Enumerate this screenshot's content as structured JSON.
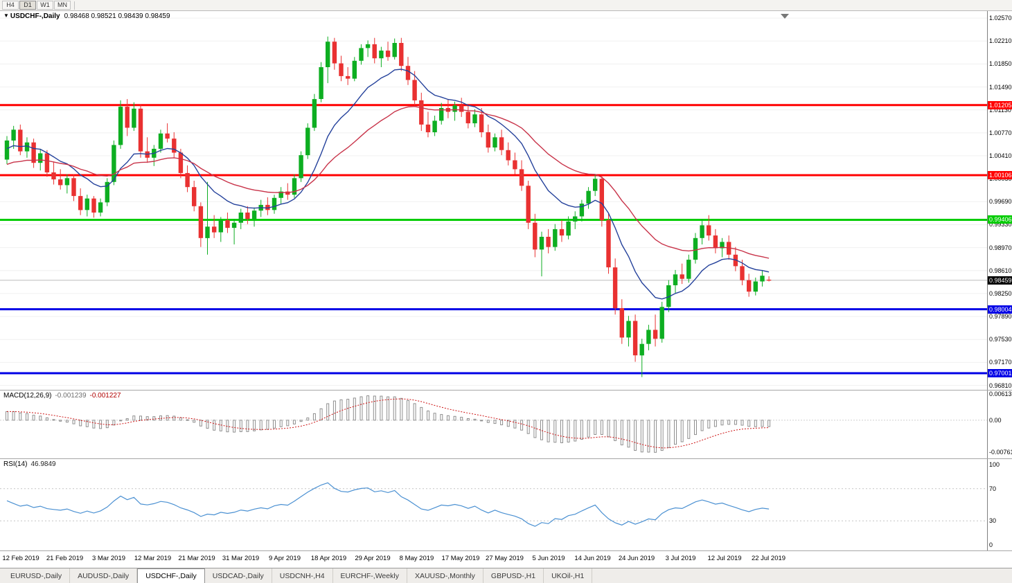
{
  "toolbar": {
    "timeframes": [
      "H4",
      "D1",
      "W1",
      "MN"
    ],
    "active": "D1"
  },
  "chart": {
    "marker_icon": "▼",
    "symbol_label": "USDCHF-,Daily",
    "ohlc_text": "0.98468 0.98521 0.98439 0.98459"
  },
  "chart_data": {
    "type": "candlestick",
    "title": "USDCHF-,Daily",
    "y_range": [
      0.9674,
      1.0268
    ],
    "y_ticks": [
      "1.02570",
      "1.02210",
      "1.01850",
      "1.01490",
      "1.01130",
      "1.00770",
      "1.00410",
      "1.00050",
      "0.99690",
      "0.99330",
      "0.98970",
      "0.98610",
      "0.98250",
      "0.97890",
      "0.97530",
      "0.97170",
      "0.96810"
    ],
    "x_labels": [
      "12 Feb 2019",
      "21 Feb 2019",
      "3 Mar 2019",
      "12 Mar 2019",
      "21 Mar 2019",
      "31 Mar 2019",
      "9 Apr 2019",
      "18 Apr 2019",
      "29 Apr 2019",
      "8 May 2019",
      "17 May 2019",
      "27 May 2019",
      "5 Jun 2019",
      "14 Jun 2019",
      "24 Jun 2019",
      "3 Jul 2019",
      "12 Jul 2019",
      "22 Jul 2019"
    ],
    "levels": [
      {
        "price": 1.01205,
        "label": "1.01205",
        "color": "#FF0000",
        "role": "resistance"
      },
      {
        "price": 1.00106,
        "label": "1.00106",
        "color": "#FF0000",
        "role": "resistance"
      },
      {
        "price": 0.99406,
        "label": "0.99406",
        "color": "#00CC00",
        "role": "resistance"
      },
      {
        "price": 0.98004,
        "label": "0.98004",
        "color": "#0000E6",
        "role": "support"
      },
      {
        "price": 0.97001,
        "label": "0.97001",
        "color": "#0000E6",
        "role": "support"
      }
    ],
    "current_price": {
      "value": 0.98459,
      "label": "0.98459"
    },
    "candles": [
      [
        1.0035,
        1.0072,
        1.0028,
        1.0065
      ],
      [
        1.0065,
        1.0088,
        1.0052,
        1.0082
      ],
      [
        1.0082,
        1.009,
        1.0042,
        1.0048
      ],
      [
        1.0048,
        1.007,
        1.0038,
        1.0062
      ],
      [
        1.0062,
        1.0068,
        1.0022,
        1.003
      ],
      [
        1.003,
        1.0052,
        1.0018,
        1.0045
      ],
      [
        1.0045,
        1.005,
        1.0008,
        1.0015
      ],
      [
        1.0015,
        1.0032,
        0.9996,
        1.0004
      ],
      [
        1.0004,
        1.002,
        0.9988,
        0.9995
      ],
      [
        0.9995,
        1.0012,
        0.9982,
        1.0006
      ],
      [
        1.0006,
        1.0012,
        0.997,
        0.9978
      ],
      [
        0.9978,
        0.999,
        0.9948,
        0.9956
      ],
      [
        0.9956,
        0.998,
        0.9946,
        0.9974
      ],
      [
        0.9974,
        0.9978,
        0.9944,
        0.9952
      ],
      [
        0.9952,
        0.9974,
        0.9946,
        0.9968
      ],
      [
        0.9968,
        1.0006,
        0.9962,
        1.0
      ],
      [
        1.0,
        1.0065,
        0.9995,
        1.0058
      ],
      [
        1.0058,
        1.0128,
        1.0052,
        1.0118
      ],
      [
        1.0118,
        1.013,
        1.0072,
        1.0085
      ],
      [
        1.0085,
        1.0125,
        1.008,
        1.0115
      ],
      [
        1.0115,
        1.0122,
        1.0038,
        1.0048
      ],
      [
        1.0048,
        1.007,
        1.003,
        1.0038
      ],
      [
        1.0038,
        1.0058,
        1.0025,
        1.0052
      ],
      [
        1.0052,
        1.0082,
        1.0046,
        1.0076
      ],
      [
        1.0076,
        1.0092,
        1.0062,
        1.0068
      ],
      [
        1.0068,
        1.0078,
        1.0038,
        1.0046
      ],
      [
        1.0046,
        1.0052,
        1.0006,
        1.0014
      ],
      [
        1.0014,
        1.0026,
        0.9984,
        0.9992
      ],
      [
        0.9992,
        1.0002,
        0.9954,
        0.9962
      ],
      [
        0.9962,
        0.9968,
        0.9898,
        0.9912
      ],
      [
        0.9912,
        1.0,
        0.9886,
        0.993
      ],
      [
        0.993,
        0.9948,
        0.9912,
        0.9921
      ],
      [
        0.9921,
        0.9945,
        0.9906,
        0.994
      ],
      [
        0.994,
        0.9952,
        0.992,
        0.9928
      ],
      [
        0.9928,
        0.9942,
        0.9902,
        0.9936
      ],
      [
        0.9936,
        0.9958,
        0.9926,
        0.9952
      ],
      [
        0.9952,
        0.9962,
        0.9934,
        0.9942
      ],
      [
        0.9942,
        0.996,
        0.993,
        0.9955
      ],
      [
        0.9955,
        0.9972,
        0.9945,
        0.9964
      ],
      [
        0.9964,
        0.9976,
        0.9948,
        0.9956
      ],
      [
        0.9956,
        0.998,
        0.995,
        0.9975
      ],
      [
        0.9975,
        0.9992,
        0.9966,
        0.9985
      ],
      [
        0.9985,
        0.9998,
        0.9972,
        0.998
      ],
      [
        0.998,
        1.0012,
        0.9975,
        1.0006
      ],
      [
        1.0006,
        1.0048,
        1.0,
        1.0042
      ],
      [
        1.0042,
        1.0092,
        1.0036,
        1.0085
      ],
      [
        1.0085,
        1.0138,
        1.008,
        1.013
      ],
      [
        1.013,
        1.0188,
        1.0125,
        1.018
      ],
      [
        1.018,
        1.0228,
        1.0155,
        1.022
      ],
      [
        1.022,
        1.0226,
        1.0176,
        1.0186
      ],
      [
        1.0186,
        1.0198,
        1.0158,
        1.0166
      ],
      [
        1.0166,
        1.018,
        1.0152,
        1.0162
      ],
      [
        1.0162,
        1.0196,
        1.0158,
        1.019
      ],
      [
        1.019,
        1.0216,
        1.0184,
        1.021
      ],
      [
        1.021,
        1.0222,
        1.0196,
        1.0216
      ],
      [
        1.0216,
        1.0226,
        1.0186,
        1.0194
      ],
      [
        1.0194,
        1.0212,
        1.018,
        1.0206
      ],
      [
        1.0206,
        1.022,
        1.019,
        1.0196
      ],
      [
        1.0196,
        1.0225,
        1.0192,
        1.0218
      ],
      [
        1.0218,
        1.0226,
        1.0174,
        1.0182
      ],
      [
        1.0182,
        1.0196,
        1.0152,
        1.016
      ],
      [
        1.016,
        1.0174,
        1.012,
        1.0128
      ],
      [
        1.0128,
        1.014,
        1.008,
        1.009
      ],
      [
        1.009,
        1.011,
        1.007,
        1.0078
      ],
      [
        1.0078,
        1.0104,
        1.0072,
        1.0096
      ],
      [
        1.0096,
        1.0124,
        1.009,
        1.0116
      ],
      [
        1.0116,
        1.013,
        1.01,
        1.011
      ],
      [
        1.011,
        1.0126,
        1.0096,
        1.012
      ],
      [
        1.012,
        1.0132,
        1.0102,
        1.011
      ],
      [
        1.011,
        1.012,
        1.0084,
        1.0092
      ],
      [
        1.0092,
        1.0114,
        1.0086,
        1.0106
      ],
      [
        1.0106,
        1.0116,
        1.007,
        1.0078
      ],
      [
        1.0078,
        1.009,
        1.0046,
        1.0054
      ],
      [
        1.0054,
        1.0076,
        1.0048,
        1.007
      ],
      [
        1.007,
        1.0082,
        1.0042,
        1.005
      ],
      [
        1.005,
        1.0062,
        1.0026,
        1.0034
      ],
      [
        1.0034,
        1.0046,
        1.0012,
        1.002
      ],
      [
        1.002,
        1.0034,
        0.9986,
        0.9994
      ],
      [
        0.9994,
        1.0002,
        0.9926,
        0.9936
      ],
      [
        0.9936,
        0.995,
        0.9882,
        0.9894
      ],
      [
        0.9894,
        0.9922,
        0.9852,
        0.9914
      ],
      [
        0.9914,
        0.9926,
        0.9888,
        0.9898
      ],
      [
        0.9898,
        0.9934,
        0.9892,
        0.9926
      ],
      [
        0.9926,
        0.994,
        0.9906,
        0.9916
      ],
      [
        0.9916,
        0.9946,
        0.991,
        0.9938
      ],
      [
        0.9938,
        0.9954,
        0.9926,
        0.9946
      ],
      [
        0.9946,
        0.9972,
        0.9938,
        0.9966
      ],
      [
        0.9966,
        0.9992,
        0.9958,
        0.9986
      ],
      [
        0.9986,
        1.0012,
        0.9978,
        1.0005
      ],
      [
        1.0005,
        1.001,
        0.993,
        0.994
      ],
      [
        0.994,
        0.9952,
        0.9856,
        0.9866
      ],
      [
        0.9866,
        0.988,
        0.9792,
        0.9802
      ],
      [
        0.9802,
        0.9816,
        0.9746,
        0.9756
      ],
      [
        0.9756,
        0.979,
        0.9742,
        0.9782
      ],
      [
        0.9782,
        0.9792,
        0.9718,
        0.9728
      ],
      [
        0.9728,
        0.9754,
        0.9694,
        0.9746
      ],
      [
        0.9746,
        0.9776,
        0.9736,
        0.9768
      ],
      [
        0.9768,
        0.9792,
        0.9742,
        0.9754
      ],
      [
        0.9754,
        0.9812,
        0.9748,
        0.9804
      ],
      [
        0.9804,
        0.9846,
        0.9796,
        0.9838
      ],
      [
        0.9838,
        0.9862,
        0.9826,
        0.9855
      ],
      [
        0.9855,
        0.9872,
        0.984,
        0.9848
      ],
      [
        0.9848,
        0.9886,
        0.9842,
        0.9878
      ],
      [
        0.9878,
        0.992,
        0.9872,
        0.9912
      ],
      [
        0.9912,
        0.9942,
        0.9902,
        0.9932
      ],
      [
        0.9932,
        0.9948,
        0.9908,
        0.9916
      ],
      [
        0.9916,
        0.9926,
        0.9888,
        0.9896
      ],
      [
        0.9896,
        0.9912,
        0.9882,
        0.9906
      ],
      [
        0.9906,
        0.9916,
        0.9878,
        0.9886
      ],
      [
        0.9886,
        0.9898,
        0.986,
        0.9868
      ],
      [
        0.9868,
        0.9878,
        0.9838,
        0.9846
      ],
      [
        0.9846,
        0.9856,
        0.982,
        0.9828
      ],
      [
        0.9828,
        0.985,
        0.9822,
        0.9844
      ],
      [
        0.9844,
        0.9862,
        0.9836,
        0.9853
      ],
      [
        0.98468,
        0.98521,
        0.98439,
        0.98459
      ]
    ],
    "indicators": {
      "macd": {
        "name": "MACD(12,26,9)",
        "main_value": "-0.001239",
        "signal_value": "-0.001227",
        "axis": [
          "0.00613",
          "0.00",
          "-0.00761"
        ]
      },
      "rsi": {
        "name": "RSI(14)",
        "value": "46.9849",
        "axis": [
          "100",
          "70",
          "30",
          "0"
        ],
        "levels": [
          70,
          30
        ]
      }
    }
  },
  "tabs": {
    "active": "USDCHF-,Daily",
    "items": [
      "EURUSD-,Daily",
      "AUDUSD-,Daily",
      "USDCHF-,Daily",
      "USDCAD-,Daily",
      "USDCNH-,H4",
      "EURCHF-,Weekly",
      "XAUUSD-,Monthly",
      "GBPUSD-,H1",
      "UKOil-,H1"
    ]
  },
  "colors": {
    "bull": "#0DAE21",
    "bear": "#E93131",
    "ma_fast": "#24419B",
    "ma_slow": "#C83349",
    "macd_hist": "#8E8E8E",
    "macd_signal": "#CC1111",
    "rsi_line": "#4A90D2",
    "current_tag_bg": "#000000",
    "grid": "#F0F0F0",
    "price_line": "#BDBDBD"
  }
}
